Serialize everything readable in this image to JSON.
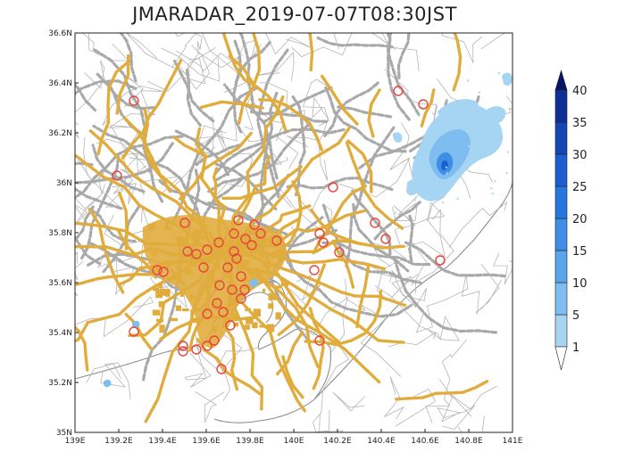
{
  "title": "JMARADAR_2019-07-07T08:30JST",
  "colors": {
    "roads_major": "#e0ac3c",
    "roads_minor": "#a9a9a9",
    "boundaries": "#a8a8a8",
    "coast": "#8c8c8c",
    "stations": "#e8453c",
    "rain": [
      "#a6d5f3",
      "#7dbdf0",
      "#5aa6ec",
      "#3e8ee6",
      "#2676e0",
      "#1a5ed0",
      "#1446b4",
      "#0e2f96",
      "#0a1f78",
      "#061664"
    ]
  },
  "map": {
    "lon_range": [
      139.0,
      141.0
    ],
    "lat_range": [
      35.0,
      36.6
    ],
    "lon_ticks": [
      "139E",
      "139.2E",
      "139.4E",
      "139.6E",
      "139.8E",
      "140E",
      "140.2E",
      "140.4E",
      "140.6E",
      "140.8E",
      "141E"
    ],
    "lat_ticks": [
      "35N",
      "35.2N",
      "35.4N",
      "35.6N",
      "35.8N",
      "36N",
      "36.2N",
      "36.4N",
      "36.6N"
    ]
  },
  "colorbar": {
    "levels": [
      "1",
      "5",
      "10",
      "15",
      "20",
      "25",
      "30",
      "35",
      "40"
    ]
  }
}
